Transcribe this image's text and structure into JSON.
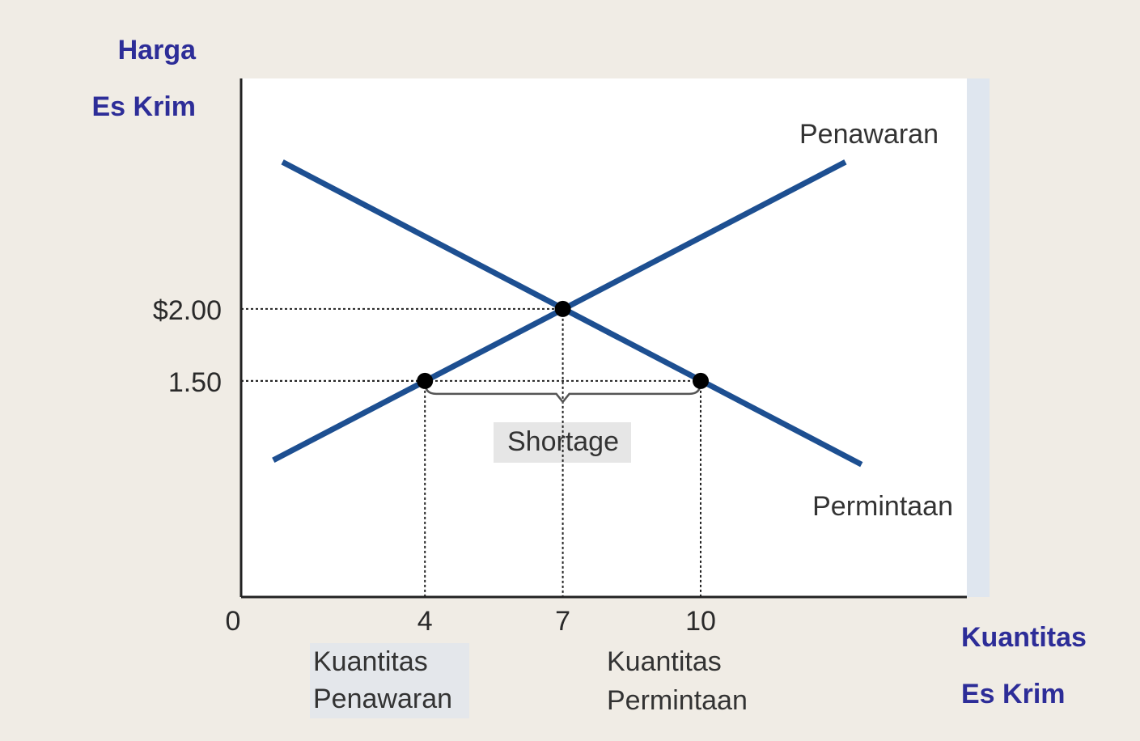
{
  "chart_data": {
    "type": "line",
    "ylabel": [
      "Harga",
      "Es Krim"
    ],
    "xlabel": [
      "Kuantitas",
      "Es Krim"
    ],
    "xlim": [
      0,
      16
    ],
    "ylim": [
      0,
      3.6
    ],
    "xticks": [
      0,
      4,
      7,
      10
    ],
    "yticks": [
      {
        "value": 2,
        "label": "$2.00"
      },
      {
        "value": 1.5,
        "label": "1.50"
      }
    ],
    "series": [
      {
        "name": "Penawaran",
        "color": "#1d4f91",
        "x": [
          0.7,
          13.15
        ],
        "values": [
          0.95,
          3.02
        ]
      },
      {
        "name": "Permintaan",
        "color": "#1d4f91",
        "x": [
          0.9,
          13.5
        ],
        "values": [
          3.02,
          0.92
        ]
      }
    ],
    "markers": {
      "color": "#000000",
      "x": [
        4,
        7,
        10
      ],
      "values": [
        1.5,
        2,
        1.5
      ]
    },
    "annotations": {
      "shortage": "Shortage",
      "supply_quantity": [
        "Kuantitas",
        "Penawaran"
      ],
      "demand_quantity": [
        "Kuantitas",
        "Permintaan"
      ]
    }
  }
}
